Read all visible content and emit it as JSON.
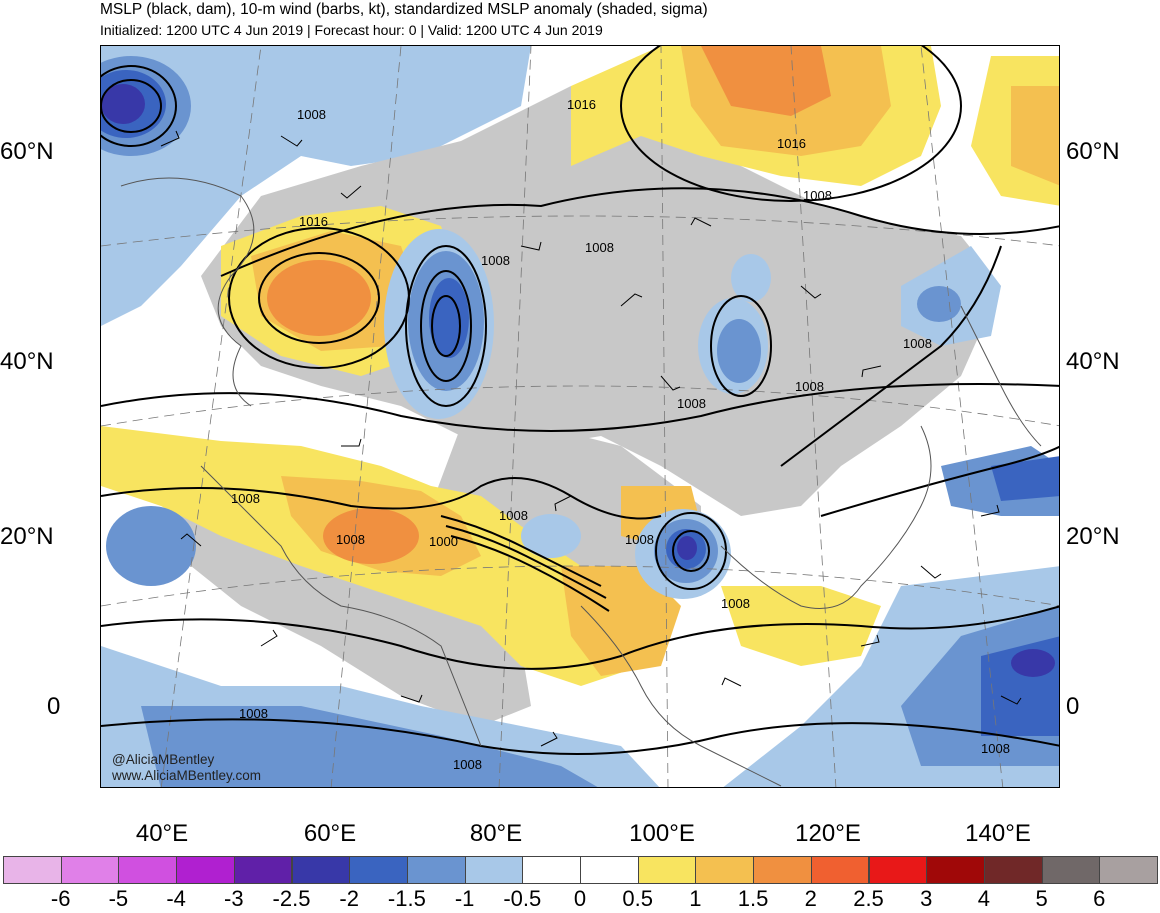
{
  "header": {
    "title": "MSLP (black, dam), 10-m wind (barbs, kt), standardized MSLP anomaly (shaded, sigma)",
    "subtitle": "Initialized: 1200 UTC 4 Jun 2019 | Forecast hour: 0 | Valid: 1200 UTC 4 Jun 2019"
  },
  "axes": {
    "lat_labels": [
      "60°N",
      "40°N",
      "20°N",
      "0"
    ],
    "lon_labels": [
      "40°E",
      "60°E",
      "80°E",
      "100°E",
      "120°E",
      "140°E"
    ]
  },
  "contour_labels": [
    "1008",
    "1016",
    "1016",
    "1016",
    "1008",
    "1008",
    "1008",
    "1008",
    "1008",
    "1008",
    "1008",
    "1008",
    "1000",
    "1008",
    "1008",
    "1008",
    "1008",
    "1008",
    "1008"
  ],
  "credit": {
    "handle": "@AliciaMBentley",
    "site": "www.AliciaMBentley.com"
  },
  "colorbar": {
    "labels": [
      "-6",
      "-5",
      "-4",
      "-3",
      "-2.5",
      "-2",
      "-1.5",
      "-1",
      "-0.5",
      "0",
      "0.5",
      "1",
      "1.5",
      "2",
      "2.5",
      "3",
      "4",
      "5",
      "6"
    ],
    "colors": [
      "#e8b4e8",
      "#e080e8",
      "#d050e0",
      "#b020d0",
      "#6020a8",
      "#3838a8",
      "#3a64c0",
      "#6a94d0",
      "#a8c8e8",
      "#ffffff",
      "#ffffff",
      "#f8e460",
      "#f4c050",
      "#f09040",
      "#f06030",
      "#e81818",
      "#a00808",
      "#702828",
      "#706868",
      "#a8a0a0"
    ]
  },
  "colors": {
    "land_gray": "#c8c8c8",
    "coast": "#555555"
  }
}
